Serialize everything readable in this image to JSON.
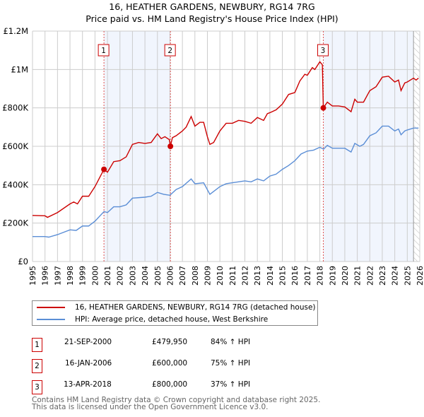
{
  "chart_data": {
    "type": "line",
    "title": "16, HEATHER GARDENS, NEWBURY, RG14 7RG",
    "subtitle": "Price paid vs. HM Land Registry's House Price Index (HPI)",
    "xlim": [
      1995,
      2026
    ],
    "ylim": [
      0,
      1200000
    ],
    "yticks": [
      {
        "v": 0,
        "label": "£0"
      },
      {
        "v": 200000,
        "label": "£200K"
      },
      {
        "v": 400000,
        "label": "£400K"
      },
      {
        "v": 600000,
        "label": "£600K"
      },
      {
        "v": 800000,
        "label": "£800K"
      },
      {
        "v": 1000000,
        "label": "£1M"
      },
      {
        "v": 1200000,
        "label": "£1.2M"
      }
    ],
    "xticks": [
      "1995",
      "1996",
      "1997",
      "1998",
      "1999",
      "2000",
      "2001",
      "2002",
      "2003",
      "2004",
      "2005",
      "2006",
      "2007",
      "2008",
      "2009",
      "2010",
      "2011",
      "2012",
      "2013",
      "2014",
      "2015",
      "2016",
      "2017",
      "2018",
      "2019",
      "2020",
      "2021",
      "2022",
      "2023",
      "2024",
      "2025",
      "2026"
    ],
    "grid": true,
    "series": [
      {
        "name": "16, HEATHER GARDENS, NEWBURY, RG14 7RG (detached house)",
        "color": "#cc0000",
        "points": [
          [
            1995,
            240
          ],
          [
            1996,
            238
          ],
          [
            1996.2,
            230
          ],
          [
            1997,
            255
          ],
          [
            1998,
            300
          ],
          [
            1998.3,
            310
          ],
          [
            1998.6,
            300
          ],
          [
            1999,
            340
          ],
          [
            1999.5,
            340
          ],
          [
            2000,
            390
          ],
          [
            2000.72,
            480
          ],
          [
            2001,
            465
          ],
          [
            2001.5,
            520
          ],
          [
            2002,
            525
          ],
          [
            2002.5,
            545
          ],
          [
            2003,
            610
          ],
          [
            2003.5,
            620
          ],
          [
            2004,
            615
          ],
          [
            2004.5,
            620
          ],
          [
            2005,
            665
          ],
          [
            2005.3,
            640
          ],
          [
            2005.6,
            650
          ],
          [
            2005.95,
            635
          ],
          [
            2006.04,
            600
          ],
          [
            2006.2,
            645
          ],
          [
            2006.5,
            655
          ],
          [
            2007,
            680
          ],
          [
            2007.3,
            700
          ],
          [
            2007.7,
            755
          ],
          [
            2008,
            705
          ],
          [
            2008.4,
            725
          ],
          [
            2008.7,
            725
          ],
          [
            2009,
            650
          ],
          [
            2009.2,
            610
          ],
          [
            2009.5,
            620
          ],
          [
            2010,
            680
          ],
          [
            2010.5,
            720
          ],
          [
            2011,
            720
          ],
          [
            2011.5,
            735
          ],
          [
            2012,
            730
          ],
          [
            2012.5,
            720
          ],
          [
            2013,
            750
          ],
          [
            2013.5,
            735
          ],
          [
            2013.8,
            770
          ],
          [
            2014,
            775
          ],
          [
            2014.5,
            790
          ],
          [
            2015,
            820
          ],
          [
            2015.5,
            870
          ],
          [
            2016,
            880
          ],
          [
            2016.4,
            940
          ],
          [
            2016.8,
            975
          ],
          [
            2017,
            970
          ],
          [
            2017.4,
            1010
          ],
          [
            2017.6,
            1000
          ],
          [
            2018,
            1040
          ],
          [
            2018.2,
            1025
          ],
          [
            2018.28,
            800
          ],
          [
            2018.6,
            830
          ],
          [
            2019,
            810
          ],
          [
            2019.5,
            810
          ],
          [
            2020,
            805
          ],
          [
            2020.5,
            780
          ],
          [
            2020.8,
            845
          ],
          [
            2021,
            830
          ],
          [
            2021.5,
            830
          ],
          [
            2022,
            890
          ],
          [
            2022.5,
            910
          ],
          [
            2023,
            960
          ],
          [
            2023.5,
            965
          ],
          [
            2024,
            935
          ],
          [
            2024.3,
            945
          ],
          [
            2024.5,
            890
          ],
          [
            2024.8,
            930
          ],
          [
            2025,
            935
          ],
          [
            2025.5,
            955
          ],
          [
            2025.7,
            945
          ],
          [
            2025.9,
            955
          ]
        ]
      },
      {
        "name": "HPI: Average price, detached house, West Berkshire",
        "color": "#5b8ed6",
        "points": [
          [
            1995,
            130
          ],
          [
            1996,
            130
          ],
          [
            1996.3,
            127
          ],
          [
            1997,
            140
          ],
          [
            1998,
            165
          ],
          [
            1998.5,
            162
          ],
          [
            1999,
            185
          ],
          [
            1999.5,
            185
          ],
          [
            2000,
            210
          ],
          [
            2000.72,
            260
          ],
          [
            2001,
            255
          ],
          [
            2001.5,
            285
          ],
          [
            2002,
            285
          ],
          [
            2002.5,
            295
          ],
          [
            2003,
            330
          ],
          [
            2004,
            335
          ],
          [
            2004.5,
            340
          ],
          [
            2005,
            360
          ],
          [
            2005.5,
            350
          ],
          [
            2006,
            345
          ],
          [
            2006.5,
            375
          ],
          [
            2007,
            390
          ],
          [
            2007.7,
            430
          ],
          [
            2008,
            405
          ],
          [
            2008.7,
            410
          ],
          [
            2009.2,
            350
          ],
          [
            2010,
            390
          ],
          [
            2010.5,
            405
          ],
          [
            2011,
            410
          ],
          [
            2012,
            420
          ],
          [
            2012.5,
            415
          ],
          [
            2013,
            430
          ],
          [
            2013.5,
            420
          ],
          [
            2014,
            445
          ],
          [
            2014.5,
            455
          ],
          [
            2015,
            480
          ],
          [
            2015.5,
            500
          ],
          [
            2016,
            525
          ],
          [
            2016.5,
            560
          ],
          [
            2017,
            575
          ],
          [
            2017.5,
            580
          ],
          [
            2018,
            595
          ],
          [
            2018.3,
            585
          ],
          [
            2018.6,
            605
          ],
          [
            2019,
            590
          ],
          [
            2020,
            590
          ],
          [
            2020.5,
            570
          ],
          [
            2020.8,
            615
          ],
          [
            2021.2,
            600
          ],
          [
            2021.5,
            610
          ],
          [
            2022,
            655
          ],
          [
            2022.5,
            670
          ],
          [
            2023,
            705
          ],
          [
            2023.5,
            705
          ],
          [
            2024,
            680
          ],
          [
            2024.3,
            690
          ],
          [
            2024.5,
            660
          ],
          [
            2024.8,
            680
          ],
          [
            2025,
            685
          ],
          [
            2025.5,
            695
          ],
          [
            2025.9,
            695
          ]
        ]
      }
    ],
    "sales": [
      {
        "n": "1",
        "x": 2000.72,
        "price": 479950
      },
      {
        "n": "2",
        "x": 2006.04,
        "price": 600000
      },
      {
        "n": "3",
        "x": 2018.28,
        "price": 800000
      }
    ],
    "shaded": [
      [
        2000.72,
        2006.04
      ],
      [
        2018.28,
        2025.5
      ]
    ],
    "forecast_hatch_from": 2025.5,
    "legend_position": "below"
  },
  "legend": {
    "red": "16, HEATHER GARDENS, NEWBURY, RG14 7RG (detached house)",
    "blue": "HPI: Average price, detached house, West Berkshire"
  },
  "sales_table": [
    {
      "n": "1",
      "date": "21-SEP-2000",
      "price": "£479,950",
      "hpi": "84% ↑ HPI"
    },
    {
      "n": "2",
      "date": "16-JAN-2006",
      "price": "£600,000",
      "hpi": "75% ↑ HPI"
    },
    {
      "n": "3",
      "date": "13-APR-2018",
      "price": "£800,000",
      "hpi": "37% ↑ HPI"
    }
  ],
  "footer": [
    "Contains HM Land Registry data © Crown copyright and database right 2025.",
    "This data is licensed under the Open Government Licence v3.0."
  ]
}
